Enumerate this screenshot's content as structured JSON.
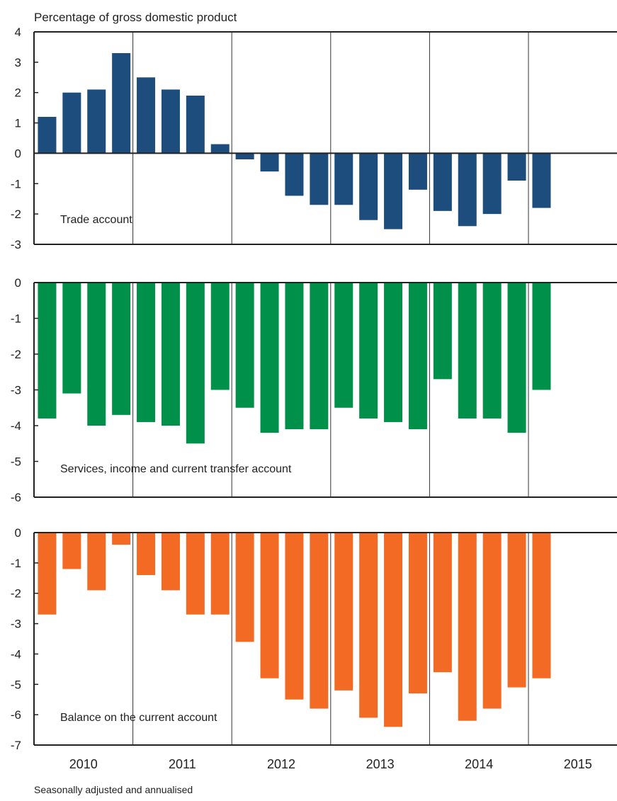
{
  "chart_data": {
    "type": "bar",
    "unit_label": "Percentage of gross domestic product",
    "footnote": "Seasonally adjusted and annualised",
    "x_tick_labels": [
      "2010",
      "2011",
      "2012",
      "2013",
      "2014",
      "2015"
    ],
    "categories": [
      "2010Q1",
      "2010Q2",
      "2010Q3",
      "2010Q4",
      "2011Q1",
      "2011Q2",
      "2011Q3",
      "2011Q4",
      "2012Q1",
      "2012Q2",
      "2012Q3",
      "2012Q4",
      "2013Q1",
      "2013Q2",
      "2013Q3",
      "2013Q4",
      "2014Q1",
      "2014Q2",
      "2014Q3",
      "2014Q4",
      "2015Q1"
    ],
    "panels": [
      {
        "name": "Trade account",
        "color": "#1c4d7c",
        "ylim": [
          -3,
          4
        ],
        "yticks": [
          "4",
          "3",
          "2",
          "1",
          "0",
          "-1",
          "-2",
          "-3"
        ],
        "values": [
          1.2,
          2.0,
          2.1,
          3.3,
          2.5,
          2.1,
          1.9,
          0.3,
          -0.2,
          -0.6,
          -1.4,
          -1.7,
          -1.7,
          -2.2,
          -2.5,
          -1.2,
          -1.9,
          -2.4,
          -2.0,
          -0.9,
          -1.8
        ]
      },
      {
        "name": "Services, income and current transfer account",
        "color": "#00904a",
        "ylim": [
          -6,
          0
        ],
        "yticks": [
          "0",
          "-1",
          "-2",
          "-3",
          "-4",
          "-5",
          "-6"
        ],
        "values": [
          -3.8,
          -3.1,
          -4.0,
          -3.7,
          -3.9,
          -4.0,
          -4.5,
          -3.0,
          -3.5,
          -4.2,
          -4.1,
          -4.1,
          -3.5,
          -3.8,
          -3.9,
          -4.1,
          -2.7,
          -3.8,
          -3.8,
          -4.2,
          -3.0
        ]
      },
      {
        "name": "Balance on the current account",
        "color": "#f26a24",
        "ylim": [
          -7,
          0
        ],
        "yticks": [
          "0",
          "-1",
          "-2",
          "-3",
          "-4",
          "-5",
          "-6",
          "-7"
        ],
        "values": [
          -2.7,
          -1.2,
          -1.9,
          -0.4,
          -1.4,
          -1.9,
          -2.7,
          -2.7,
          -3.6,
          -4.8,
          -5.5,
          -5.8,
          -5.2,
          -6.1,
          -6.4,
          -5.3,
          -4.6,
          -6.2,
          -5.8,
          -5.1,
          -4.8
        ]
      }
    ]
  }
}
